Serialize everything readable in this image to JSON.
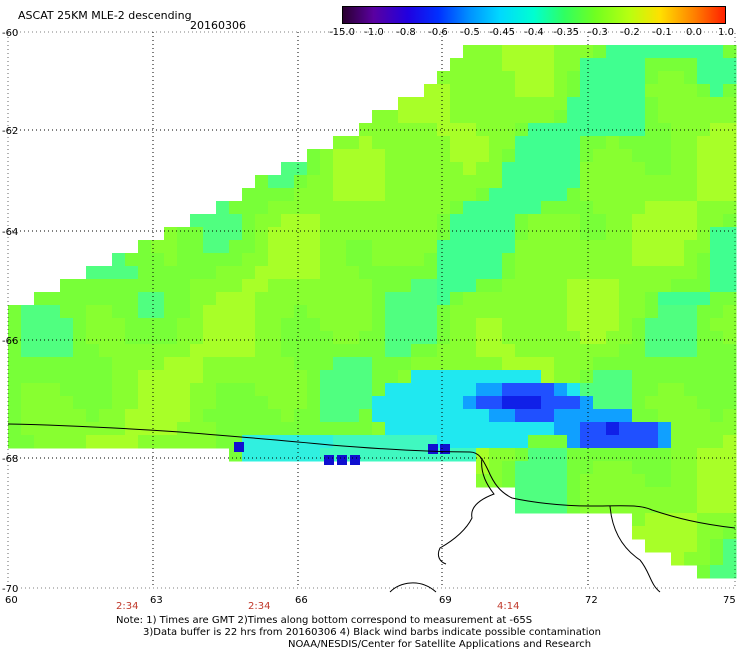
{
  "header": {
    "title": "ASCAT 25KM MLE-2 descending",
    "date": "20160306"
  },
  "colorbar": {
    "labels": [
      "-15.0",
      "-1.0",
      "-0.8",
      "-0.6",
      "-0.5",
      "-0.45",
      "-0.4",
      "-0.35",
      "-0.3",
      "-0.2",
      "-0.1",
      "0.0",
      "1.0"
    ],
    "colors": [
      "#2a0030",
      "#5a00a0",
      "#2000e0",
      "#0030ff",
      "#0090ff",
      "#00d8ff",
      "#00ffd0",
      "#30ff60",
      "#70ff20",
      "#b8ff10",
      "#ffe000",
      "#ff8000",
      "#ff2000"
    ]
  },
  "map": {
    "lat_labels": [
      "-60",
      "-62",
      "-64",
      "-66",
      "-68",
      "-70"
    ],
    "lon_labels": [
      "60",
      "63",
      "66",
      "69",
      "72",
      "75"
    ],
    "times": [
      "2:34",
      "2:34",
      "4:14"
    ]
  },
  "footer": {
    "note_line1": "Note: 1) Times are GMT 2)Times along bottom correspond to measurement at -65S",
    "note_line2": "3)Data buffer is 22 hrs from 20160306 4) Black wind barbs indicate possible contamination",
    "credit": "NOAA/NESDIS/Center for Satellite Applications and Research"
  }
}
